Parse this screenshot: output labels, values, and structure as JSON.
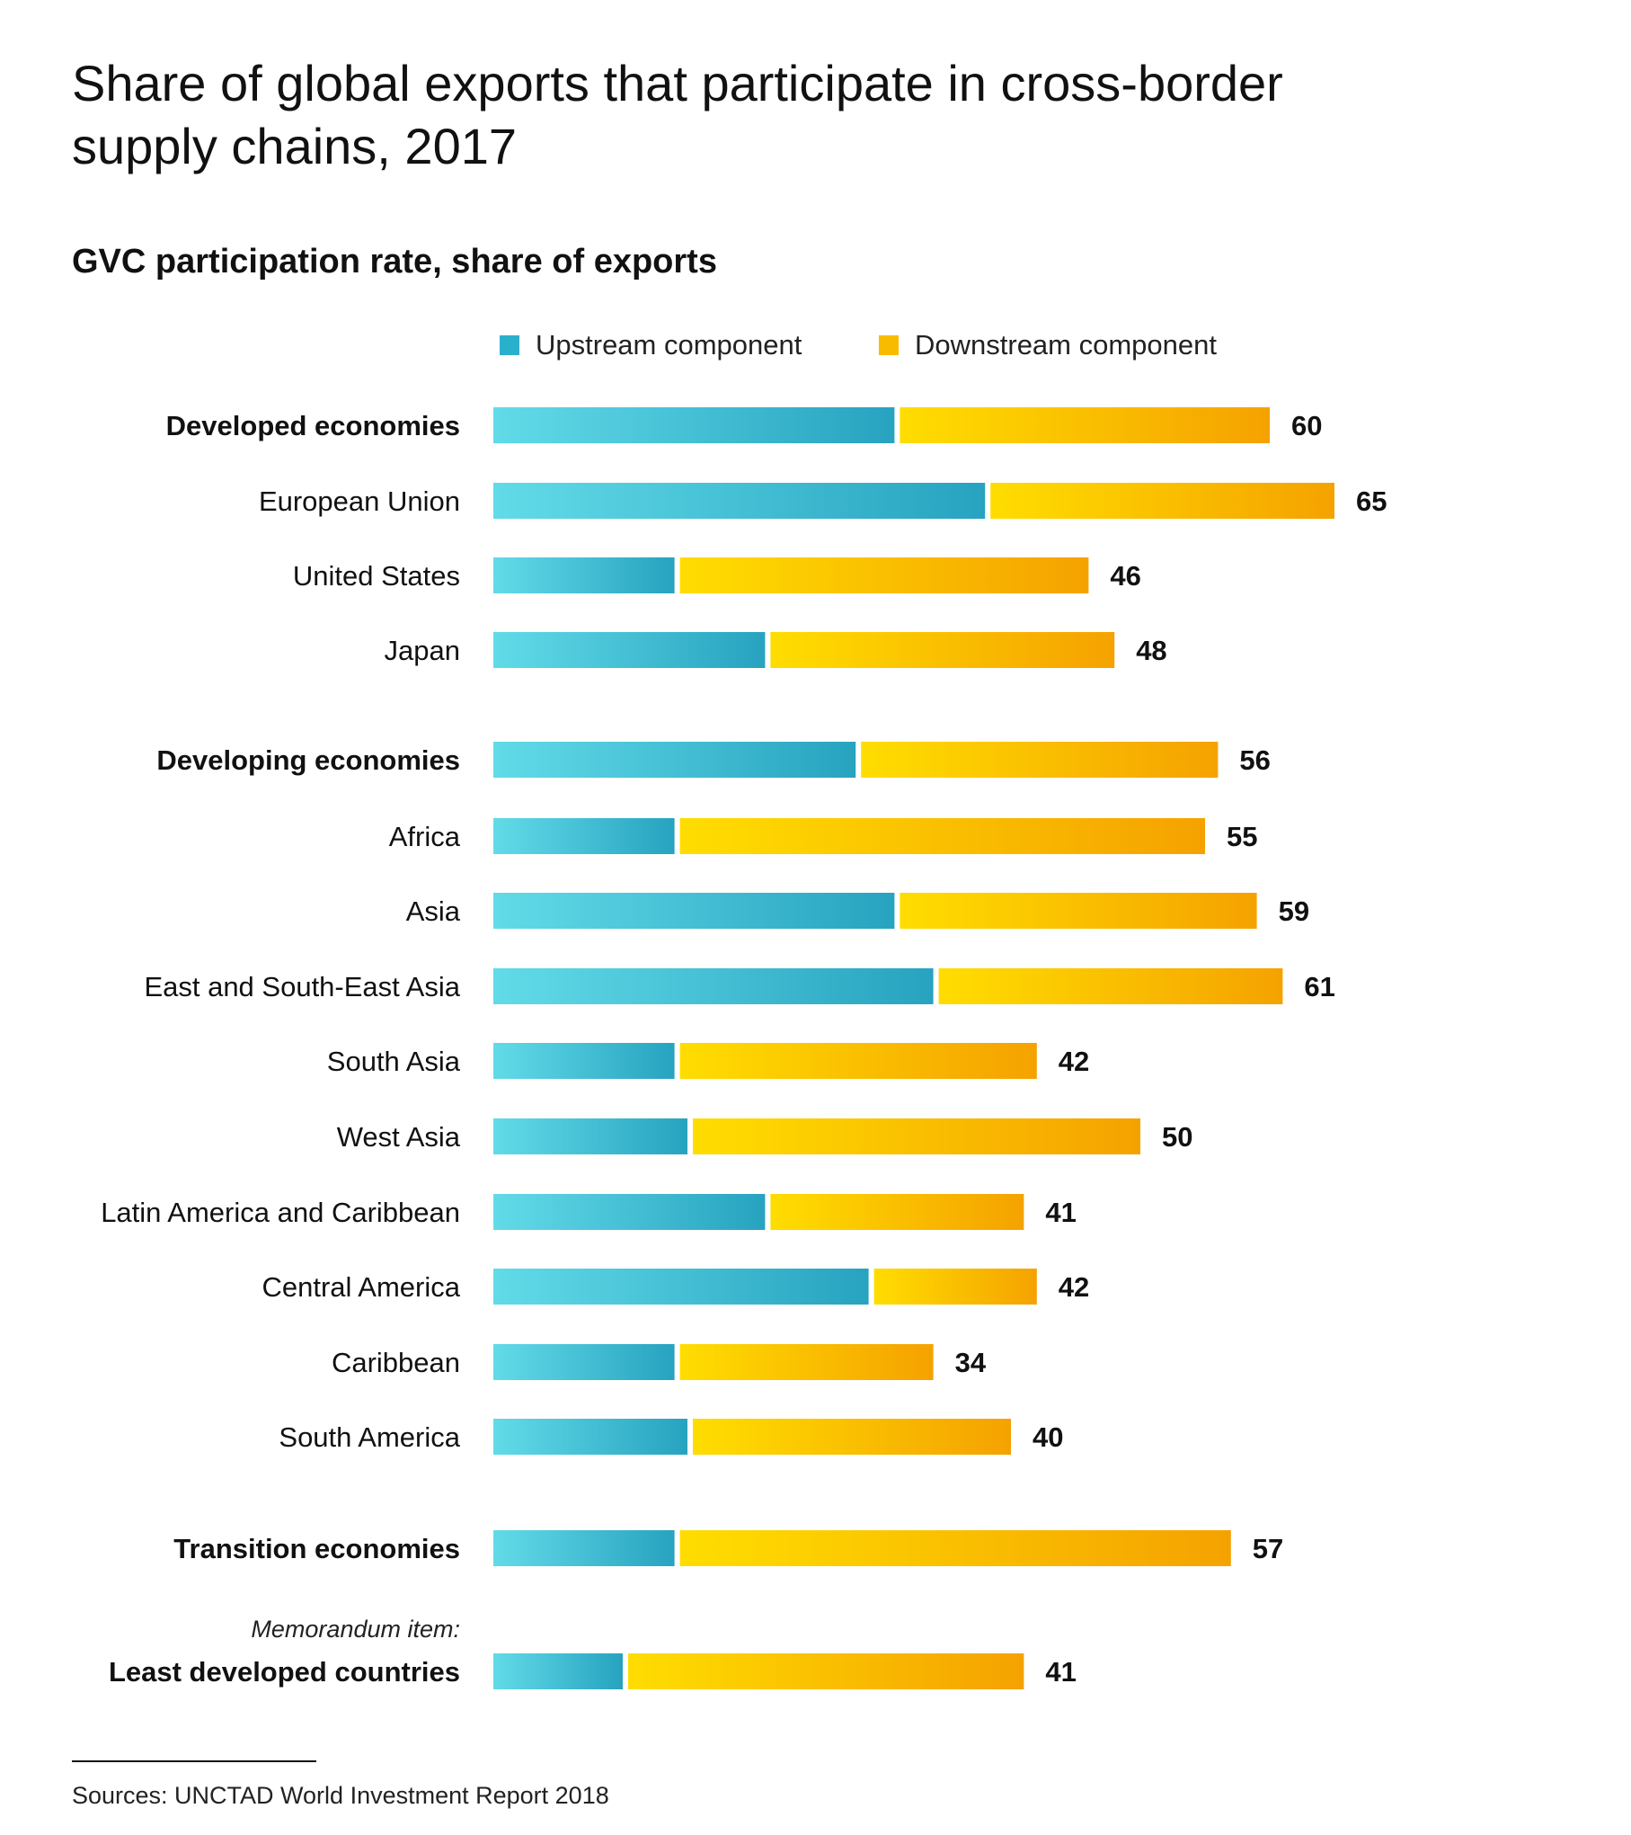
{
  "title": "Share of global exports that participate in cross-border supply chains, 2017",
  "subtitle": "GVC participation rate, share of exports",
  "source": "Sources: UNCTAD World Investment Report 2018",
  "colors": {
    "upstream_light": "#62dbe8",
    "upstream_dark": "#27a3c0",
    "downstream_light": "#ffdd00",
    "downstream_dark": "#f5a200",
    "legend_upstream": "#2bb0cc",
    "legend_downstream": "#f9bb00"
  },
  "chart_data": {
    "type": "bar",
    "orientation": "horizontal",
    "stacked": true,
    "legend": [
      "Upstream component",
      "Downstream component"
    ],
    "legend_placement": "top",
    "grid": false,
    "unit": "percent of exports",
    "categories": [
      "Developed economies",
      "European Union",
      "United States",
      "Japan",
      "Developing economies",
      "Africa",
      "Asia",
      "East and South-East Asia",
      "South Asia",
      "West Asia",
      "Latin America and Caribbean",
      "Central America",
      "Caribbean",
      "South America",
      "Transition economies",
      "Least developed countries"
    ],
    "bold_categories": [
      "Developed economies",
      "Developing economies",
      "Transition economies",
      "Least developed countries"
    ],
    "annotation": {
      "text": "Memorandum item:",
      "category": "Least developed countries"
    },
    "series": [
      {
        "name": "Upstream component",
        "values": [
          31,
          38,
          14,
          21,
          28,
          14,
          31,
          34,
          14,
          15,
          21,
          29,
          14,
          15,
          14,
          10
        ]
      },
      {
        "name": "Downstream component",
        "values": [
          29,
          27,
          32,
          27,
          28,
          41,
          28,
          27,
          28,
          35,
          20,
          13,
          20,
          25,
          43,
          31
        ]
      }
    ],
    "totals": [
      60,
      65,
      46,
      48,
      56,
      55,
      59,
      61,
      42,
      50,
      41,
      42,
      34,
      40,
      57,
      41
    ]
  }
}
